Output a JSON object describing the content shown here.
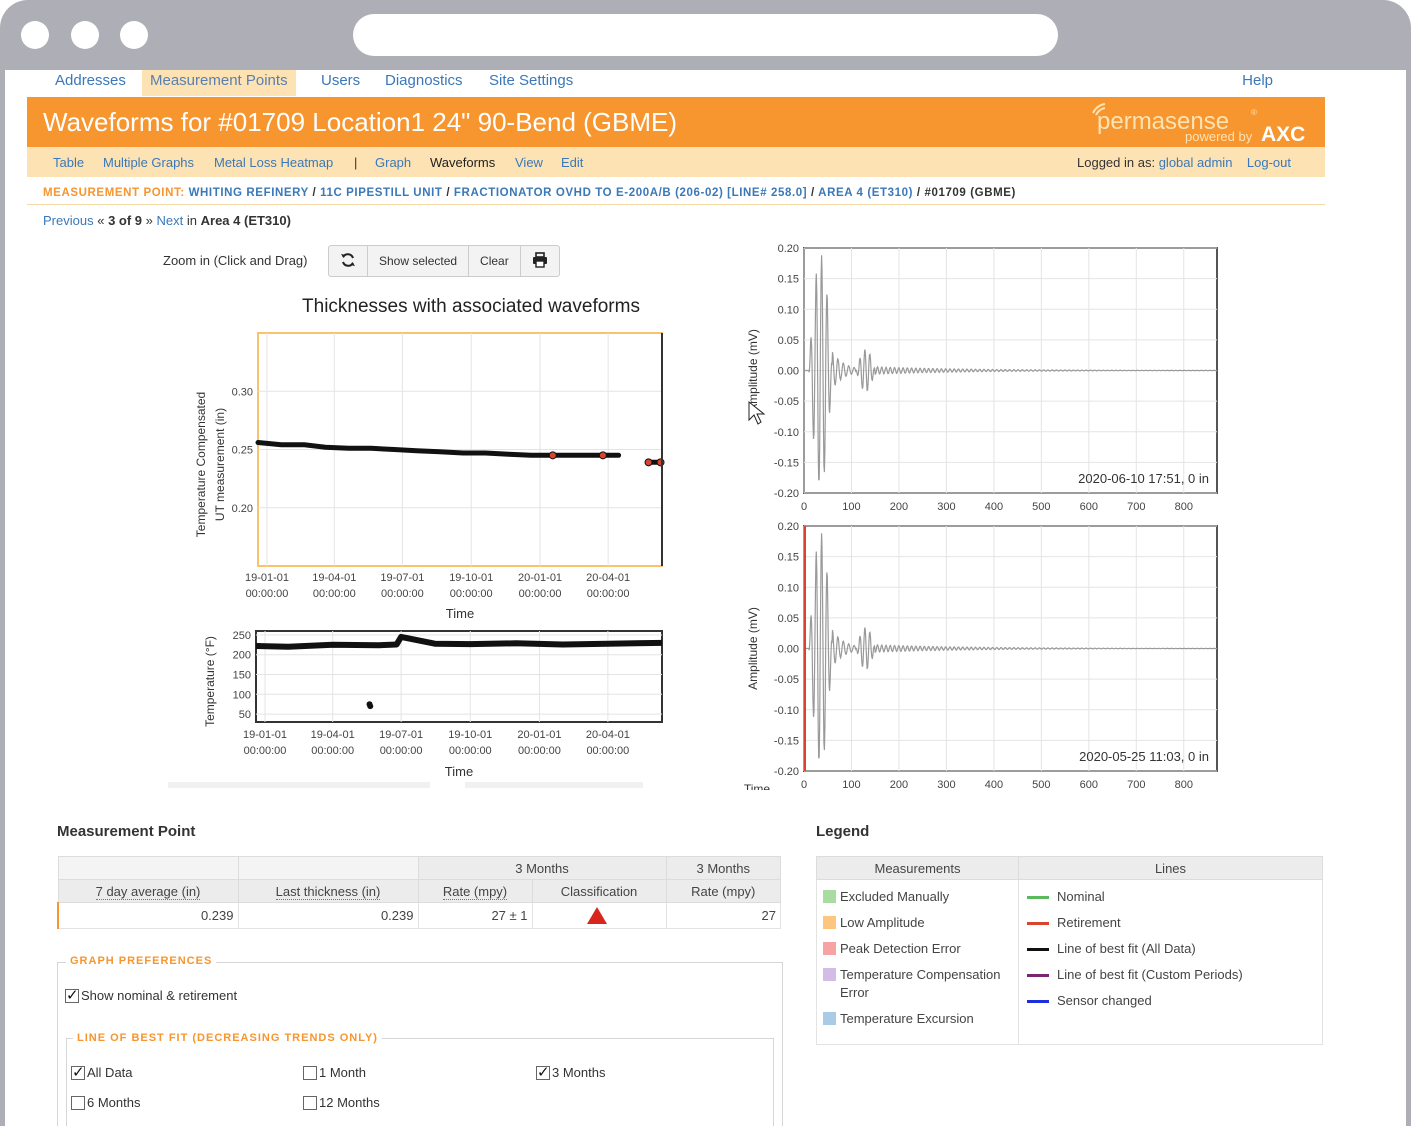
{
  "nav": {
    "tabs": [
      "Addresses",
      "Measurement Points",
      "Users",
      "Diagnostics",
      "Site Settings"
    ],
    "active": "Measurement Points",
    "help": "Help"
  },
  "banner": {
    "title": "Waveforms for #01709 Location1 24\" 90-Bend (GBME)",
    "logo_main": "permasense",
    "logo_sub": "powered by",
    "logo_brand": "AXC"
  },
  "subnav": {
    "links": [
      "Table",
      "Multiple Graphs",
      "Metal Loss Heatmap",
      "|",
      "Graph",
      "Waveforms",
      "View",
      "Edit"
    ],
    "logged_in_label": "Logged in as:",
    "user": "global admin",
    "logout": "Log-out"
  },
  "breadcrumb": {
    "label": "MEASUREMENT POINT:",
    "items": [
      "WHITING REFINERY",
      "11C PIPESTILL UNIT",
      "FRACTIONATOR OVHD TO E-200A/B (206-02) [LINE# 258.0]",
      "AREA 4 (ET310)"
    ],
    "current": "#01709 (GBME)"
  },
  "pager": {
    "previous": "Previous",
    "laquo": "«",
    "position": "3 of 9",
    "raquo": "»",
    "next": "Next",
    "in": "in",
    "area": "Area 4 (ET310)"
  },
  "toolbar": {
    "zoom_label": "Zoom in (Click and Drag)",
    "refresh_icon": "refresh-icon",
    "show_selected": "Show selected",
    "clear": "Clear",
    "print_icon": "print-icon"
  },
  "chart_data": [
    {
      "type": "scatter",
      "title": "Thicknesses with associated waveforms",
      "xlabel": "Time",
      "ylabel": "Temperature Compensated UT measurement (in)",
      "x_ticks": [
        "19-01-01 00:00:00",
        "19-04-01 00:00:00",
        "19-07-01 00:00:00",
        "19-10-01 00:00:00",
        "20-01-01 00:00:00",
        "20-04-01 00:00:00"
      ],
      "y_ticks": [
        "0.20",
        "0.25",
        "0.30"
      ],
      "ylim": [
        0.15,
        0.35
      ],
      "xlim": [
        "2018-12-20",
        "2020-06-12"
      ],
      "series": [
        {
          "x": [
            "2018-12-20",
            "2019-01-20",
            "2019-02-20",
            "2019-03-20",
            "2019-04-20",
            "2019-05-20",
            "2019-06-20",
            "2019-07-20",
            "2019-08-20",
            "2019-09-20",
            "2019-10-20",
            "2019-11-20",
            "2019-12-20",
            "2020-01-15",
            "2020-02-15",
            "2020-03-15",
            "2020-04-15"
          ],
          "values": [
            0.256,
            0.254,
            0.254,
            0.252,
            0.251,
            0.251,
            0.25,
            0.249,
            0.248,
            0.247,
            0.247,
            0.246,
            0.245,
            0.245,
            0.245,
            0.245,
            0.245
          ]
        },
        {
          "x": [
            "2020-05-25",
            "2020-06-01",
            "2020-06-10"
          ],
          "values": [
            0.239,
            0.239,
            0.239
          ]
        }
      ],
      "highlighted": [
        {
          "x": "2020-01-18",
          "value": 0.245
        },
        {
          "x": "2020-03-25",
          "value": 0.245
        },
        {
          "x": "2020-05-25",
          "value": 0.239
        },
        {
          "x": "2020-06-10",
          "value": 0.239
        }
      ],
      "grid": true
    },
    {
      "type": "scatter",
      "xlabel": "Time",
      "ylabel": "Temperature (°F)",
      "x_ticks": [
        "19-01-01 00:00:00",
        "19-04-01 00:00:00",
        "19-07-01 00:00:00",
        "19-10-01 00:00:00",
        "20-01-01 00:00:00",
        "20-04-01 00:00:00"
      ],
      "y_ticks": [
        "50",
        "100",
        "150",
        "200",
        "250"
      ],
      "ylim": [
        30,
        260
      ],
      "series": [
        {
          "x": [
            "2018-12-20",
            "2019-02-01",
            "2019-04-01",
            "2019-06-01",
            "2019-06-25",
            "2019-07-01",
            "2019-08-15",
            "2019-10-01",
            "2019-12-01",
            "2020-02-01",
            "2020-04-01",
            "2020-06-12"
          ],
          "values": [
            222,
            220,
            225,
            224,
            226,
            245,
            228,
            227,
            229,
            226,
            228,
            230
          ]
        },
        {
          "x": [
            "2019-05-20",
            "2019-05-21"
          ],
          "values": [
            75,
            70
          ]
        }
      ],
      "grid": true
    },
    {
      "type": "line",
      "ylabel": "Amplitude (mV)",
      "y_ticks": [
        "-0.20",
        "-0.15",
        "-0.10",
        "-0.05",
        "0.00",
        "0.05",
        "0.10",
        "0.15",
        "0.20"
      ],
      "x_ticks": [
        "0",
        "100",
        "200",
        "300",
        "400",
        "500",
        "600",
        "700",
        "800"
      ],
      "ylim": [
        -0.2,
        0.2
      ],
      "xlim": [
        0,
        870
      ],
      "annotation": "2020-06-10 17:51, 0 in",
      "grid": true
    },
    {
      "type": "line",
      "ylabel": "Amplitude (mV)",
      "xlabel": "Time",
      "y_ticks": [
        "-0.20",
        "-0.15",
        "-0.10",
        "-0.05",
        "0.00",
        "0.05",
        "0.10",
        "0.15",
        "0.20"
      ],
      "x_ticks": [
        "0",
        "100",
        "200",
        "300",
        "400",
        "500",
        "600",
        "700",
        "800"
      ],
      "ylim": [
        -0.2,
        0.2
      ],
      "xlim": [
        0,
        870
      ],
      "annotation": "2020-05-25 11:03, 0 in",
      "grid": true
    }
  ],
  "measurement_point": {
    "title": "Measurement Point",
    "group_3m": "3 Months",
    "group_3m_b": "3 Months",
    "cols": [
      "7 day average (in)",
      "Last thickness (in)",
      "Rate (mpy)",
      "Classification",
      "Rate (mpy)"
    ],
    "row": {
      "avg": "0.239",
      "last": "0.239",
      "rate": "27 ± 1",
      "classification_icon": "red-triangle-icon",
      "rate2": "27"
    },
    "colors": {
      "triangle": "#d9261c"
    }
  },
  "legend": {
    "title": "Legend",
    "measurements_header": "Measurements",
    "lines_header": "Lines",
    "measurements": [
      {
        "label": "Excluded Manually",
        "color": "#a8dca0"
      },
      {
        "label": "Low Amplitude",
        "color": "#fdc67e"
      },
      {
        "label": "Peak Detection Error",
        "color": "#f6a3a3"
      },
      {
        "label": "Temperature Compensation Error",
        "color": "#d3bde6"
      },
      {
        "label": "Temperature Excursion",
        "color": "#a8cbe8"
      }
    ],
    "lines": [
      {
        "label": "Nominal",
        "color": "#5cb85c"
      },
      {
        "label": "Retirement",
        "color": "#d9442c"
      },
      {
        "label": "Line of best fit (All Data)",
        "color": "#111111"
      },
      {
        "label": "Line of best fit (Custom Periods)",
        "color": "#7b2374"
      },
      {
        "label": "Sensor changed",
        "color": "#1c2fe0"
      }
    ]
  },
  "graph_prefs": {
    "title": "GRAPH PREFERENCES",
    "show_nominal": "Show nominal & retirement",
    "show_nominal_checked": true,
    "lobf_title": "LINE OF BEST FIT (DECREASING TRENDS ONLY)",
    "options": [
      {
        "label": "All Data",
        "checked": true
      },
      {
        "label": "1 Month",
        "checked": false
      },
      {
        "label": "3 Months",
        "checked": true
      },
      {
        "label": "6 Months",
        "checked": false
      },
      {
        "label": "12 Months",
        "checked": false
      }
    ]
  }
}
